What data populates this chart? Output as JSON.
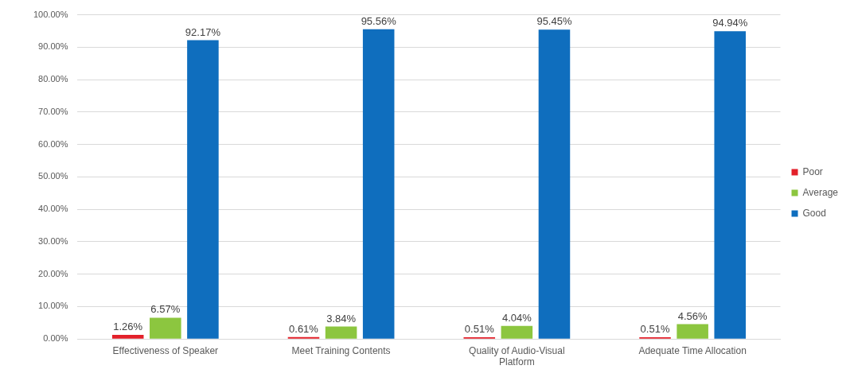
{
  "chart_data": {
    "type": "bar",
    "categories": [
      "Effectiveness of Speaker",
      "Meet Training Contents",
      "Quality of Audio-Visual Platform",
      "Adequate Time Allocation"
    ],
    "series": [
      {
        "name": "Poor",
        "color": "#e3202a",
        "values": [
          1.26,
          0.61,
          0.51,
          0.51
        ],
        "value_labels": [
          "1.26%",
          "0.61%",
          "0.51%",
          "0.51%"
        ]
      },
      {
        "name": "Average",
        "color": "#8cc63f",
        "values": [
          6.57,
          3.84,
          4.04,
          4.56
        ],
        "value_labels": [
          "6.57%",
          "3.84%",
          "4.04%",
          "4.56%"
        ]
      },
      {
        "name": "Good",
        "color": "#0f6ebe",
        "values": [
          92.17,
          95.56,
          95.45,
          94.94
        ],
        "value_labels": [
          "92.17%",
          "95.56%",
          "95.45%",
          "94.94%"
        ]
      }
    ],
    "ylim": [
      0,
      100
    ],
    "yticks": [
      {
        "value": 0,
        "label": "0.00%"
      },
      {
        "value": 10,
        "label": "10.00%"
      },
      {
        "value": 20,
        "label": "20.00%"
      },
      {
        "value": 30,
        "label": "30.00%"
      },
      {
        "value": 40,
        "label": "40.00%"
      },
      {
        "value": 50,
        "label": "50.00%"
      },
      {
        "value": 60,
        "label": "60.00%"
      },
      {
        "value": 70,
        "label": "70.00%"
      },
      {
        "value": 80,
        "label": "80.00%"
      },
      {
        "value": 90,
        "label": "90.00%"
      },
      {
        "value": 100,
        "label": "100.00%"
      }
    ],
    "grid": "y",
    "legend": "right"
  }
}
